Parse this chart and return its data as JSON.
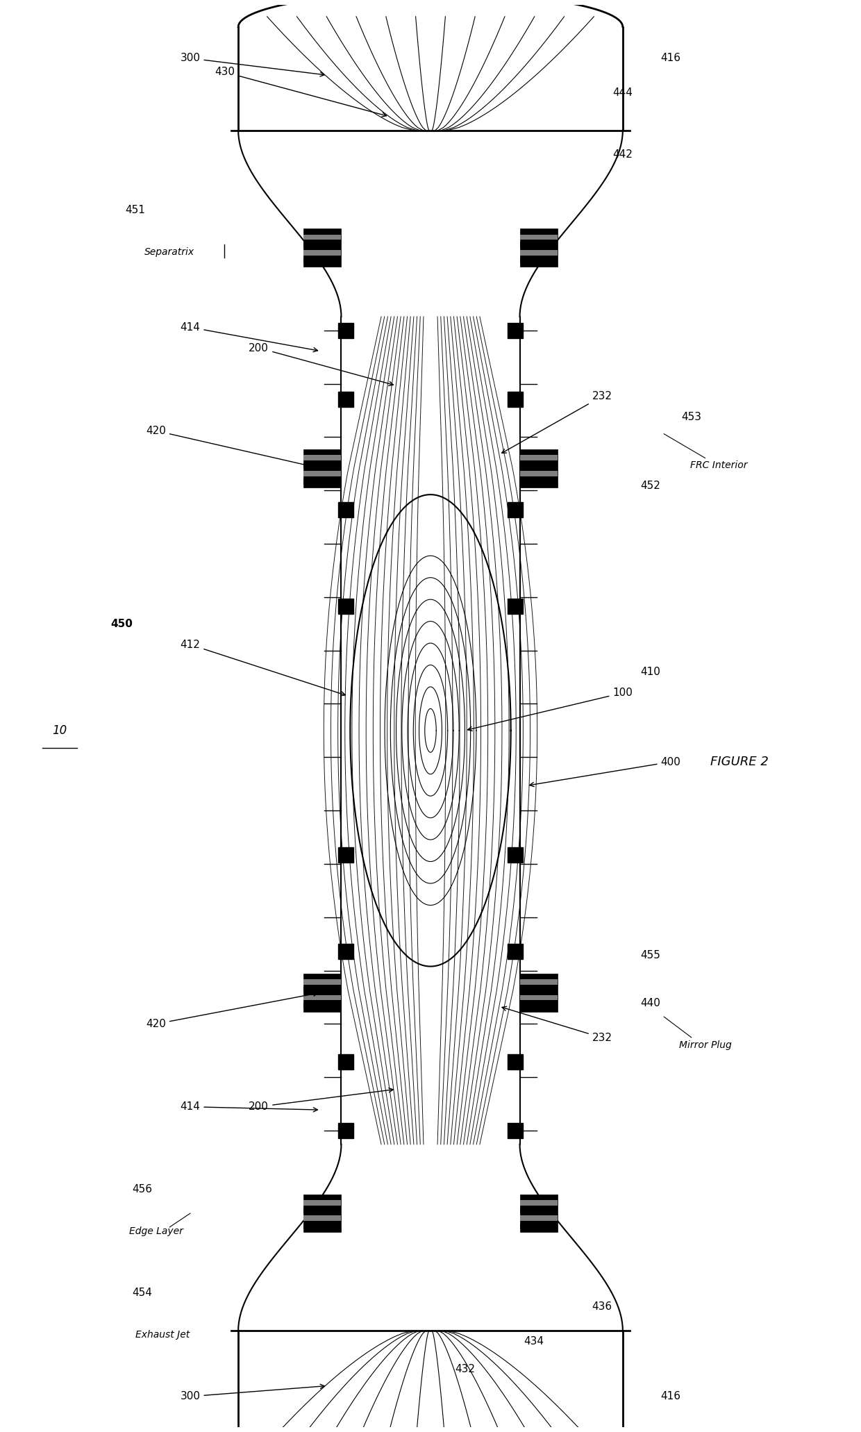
{
  "title": "FIGURE 2",
  "ref_label": "10",
  "background_color": "#ffffff",
  "line_color": "#000000",
  "fig_width": 12.4,
  "fig_height": 20.62,
  "labels": {
    "300_top": "300",
    "300_bot": "300",
    "416_top": "416",
    "416_bot": "416",
    "430": "430",
    "444": "444",
    "442": "442",
    "451": "451",
    "separatrix": "Separatrix",
    "414_top": "414",
    "414_bot": "414",
    "200_top": "200",
    "200_bot": "200",
    "232_top": "232",
    "232_bot": "232",
    "420_top": "420",
    "420_bot": "420",
    "450": "450",
    "412": "412",
    "452": "452",
    "453": "453",
    "frc_interior": "FRC Interior",
    "410": "410",
    "100": "100",
    "400": "400",
    "440": "440",
    "mirror_plug": "Mirror Plug",
    "455": "455",
    "432": "432",
    "434": "434",
    "436": "436",
    "456": "456",
    "edge_layer": "Edge Layer",
    "454": "454",
    "exhaust_jet": "Exhaust Jet"
  }
}
